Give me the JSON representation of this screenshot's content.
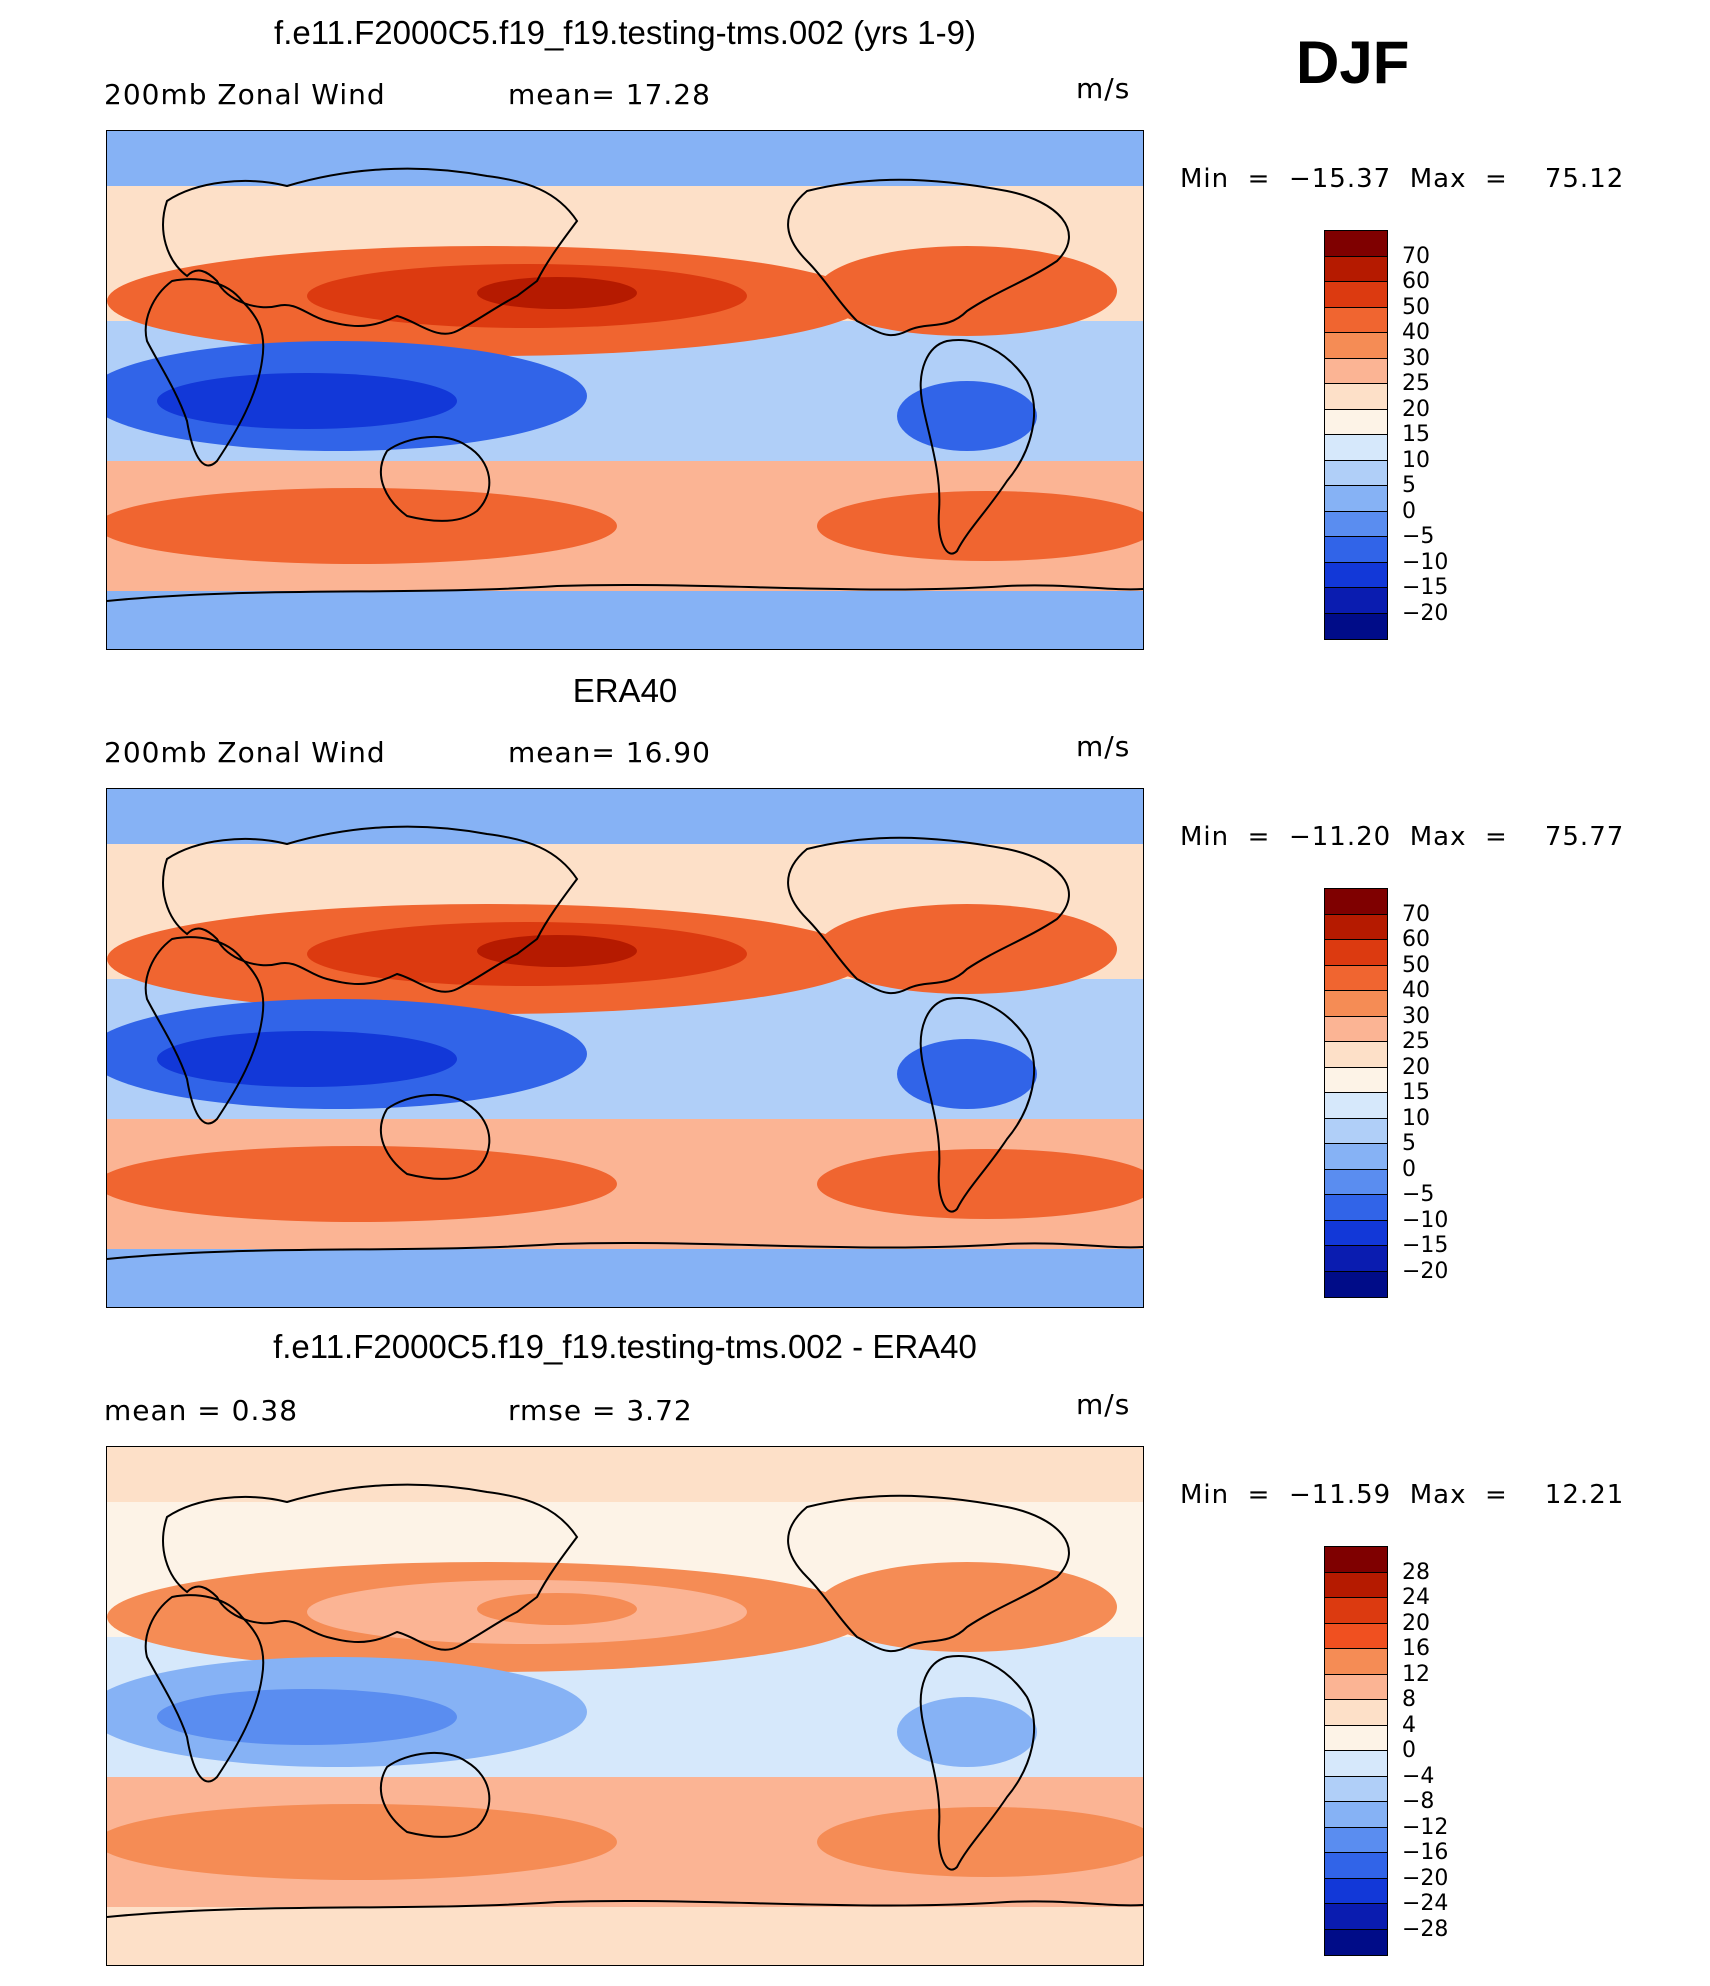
{
  "season": "DJF",
  "panels": [
    {
      "title": "f.e11.F2000C5.f19_f19.testing-tms.002 (yrs 1-9)",
      "left_label": "200mb Zonal Wind",
      "center_label": "mean=   17.28",
      "units": "m/s",
      "minmax": "Min  =  −15.37  Max  =    75.12",
      "colorbar": {
        "levels": [
          "70",
          "60",
          "50",
          "40",
          "30",
          "25",
          "20",
          "15",
          "10",
          "5",
          "0",
          "−5",
          "−10",
          "−15",
          "−20"
        ],
        "colors": [
          "#7f0000",
          "#b51a00",
          "#dc3a10",
          "#f06530",
          "#f58c55",
          "#fbb494",
          "#fde0c8",
          "#fdf3e7",
          "#d6e8fb",
          "#b0cff8",
          "#86b2f5",
          "#5a8df0",
          "#3164e8",
          "#1238d8",
          "#0a1cb0",
          "#000c88"
        ]
      },
      "map_colors": {
        "bg": "#86b2f5",
        "c1": "#b0cff8",
        "c2": "#fbb494",
        "c3": "#f06530",
        "c4": "#dc3a10",
        "c5": "#b51a00",
        "c6": "#3164e8",
        "c7": "#1238d8",
        "c8": "#fde0c8"
      }
    },
    {
      "title": "ERA40",
      "left_label": "200mb Zonal Wind",
      "center_label": "mean=   16.90",
      "units": "m/s",
      "minmax": "Min  =  −11.20  Max  =    75.77",
      "colorbar": {
        "levels": [
          "70",
          "60",
          "50",
          "40",
          "30",
          "25",
          "20",
          "15",
          "10",
          "5",
          "0",
          "−5",
          "−10",
          "−15",
          "−20"
        ],
        "colors": [
          "#7f0000",
          "#b51a00",
          "#dc3a10",
          "#f06530",
          "#f58c55",
          "#fbb494",
          "#fde0c8",
          "#fdf3e7",
          "#d6e8fb",
          "#b0cff8",
          "#86b2f5",
          "#5a8df0",
          "#3164e8",
          "#1238d8",
          "#0a1cb0",
          "#000c88"
        ]
      },
      "map_colors": {
        "bg": "#86b2f5",
        "c1": "#b0cff8",
        "c2": "#fbb494",
        "c3": "#f06530",
        "c4": "#dc3a10",
        "c5": "#b51a00",
        "c6": "#3164e8",
        "c7": "#1238d8",
        "c8": "#fde0c8"
      }
    },
    {
      "title": "f.e11.F2000C5.f19_f19.testing-tms.002 - ERA40",
      "left_label": "mean =    0.38",
      "center_label": "rmse =    3.72",
      "units": "m/s",
      "minmax": "Min  =  −11.59  Max  =    12.21",
      "colorbar": {
        "levels": [
          "28",
          "24",
          "20",
          "16",
          "12",
          "8",
          "4",
          "0",
          "−4",
          "−8",
          "−12",
          "−16",
          "−20",
          "−24",
          "−28"
        ],
        "colors": [
          "#7f0000",
          "#b51a00",
          "#dc3a10",
          "#f05020",
          "#f58c55",
          "#fbb494",
          "#fde0c8",
          "#fdf3e7",
          "#d6e8fb",
          "#b0cff8",
          "#86b2f5",
          "#5a8df0",
          "#3164e8",
          "#1238d8",
          "#0a1cb0",
          "#000c88"
        ]
      },
      "map_colors": {
        "bg": "#fde0c8",
        "c1": "#d6e8fb",
        "c2": "#fbb494",
        "c3": "#f58c55",
        "c4": "#fbb494",
        "c5": "#f58c55",
        "c6": "#86b2f5",
        "c7": "#5a8df0",
        "c8": "#fdf3e7"
      }
    }
  ]
}
